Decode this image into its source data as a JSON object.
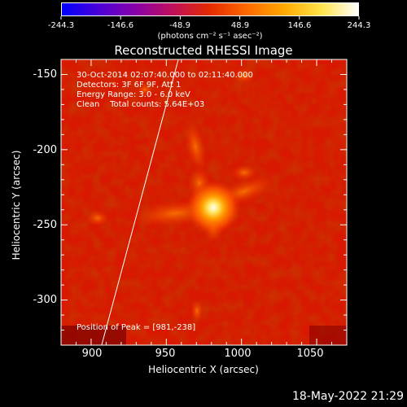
{
  "colorbar": {
    "tick_labels": [
      "-244.3",
      "-146.6",
      "-48.9",
      "48.9",
      "146.6",
      "244.3"
    ],
    "units": "(photons cm⁻² s⁻¹ asec⁻²)",
    "colormap": [
      "#0000ff",
      "#4b00d8",
      "#8a00a8",
      "#c0105a",
      "#e52a00",
      "#ff6a00",
      "#ffa800",
      "#ffe34a",
      "#ffffff"
    ]
  },
  "title": "Reconstructed RHESSI Image",
  "annotations": {
    "time": "30-Oct-2014 02:07:40.000 to 02:11:40.000",
    "detectors": "Detectors: 3F 6F 9F, Att 1",
    "energy": "Energy Range: 3.0 - 6.0 keV",
    "clean": "Clean    Total counts: 5.64E+03",
    "peak": "Position of Peak = [981,-238]"
  },
  "axes": {
    "xlabel": "Heliocentric X (arcsec)",
    "ylabel": "Heliocentric Y (arcsec)",
    "xticks": [
      "900",
      "950",
      "1000",
      "1050"
    ],
    "yticks": [
      "-150",
      "-200",
      "-250",
      "-300"
    ]
  },
  "timestamp": "18-May-2022 21:29",
  "chart_data": {
    "type": "heatmap",
    "title": "Reconstructed RHESSI Image",
    "xlabel": "Heliocentric X (arcsec)",
    "ylabel": "Heliocentric Y (arcsec)",
    "xlim": [
      880,
      1070
    ],
    "ylim": [
      -330,
      -140
    ],
    "xticks": [
      900,
      950,
      1000,
      1050
    ],
    "yticks": [
      -150,
      -200,
      -250,
      -300
    ],
    "zlim": [
      -244.3,
      244.3
    ],
    "colorbar_ticks": [
      -244.3,
      -146.6,
      -48.9,
      48.9,
      146.6,
      244.3
    ],
    "peak": [
      981,
      -238
    ],
    "limb_line": [
      [
        907,
        -330
      ],
      [
        958,
        -140
      ]
    ]
  }
}
